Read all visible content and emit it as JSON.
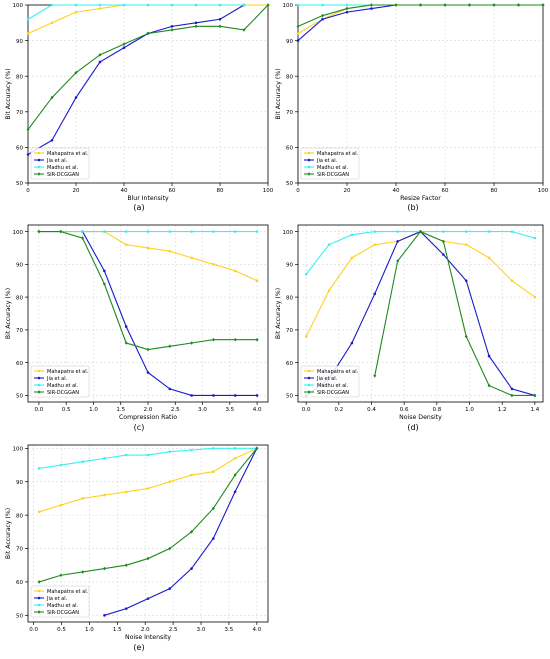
{
  "colors": {
    "Mahapatra et al.": "#ffd21f",
    "Jia et al.": "#1a1acc",
    "Madhu et al.": "#3af0f0",
    "SIR-DCGGAN": "#1e8a1e"
  },
  "chart_data": [
    {
      "panel_label": "(a)",
      "type": "line",
      "xlabel": "Blur Intensity",
      "ylabel": "Bit Accuracy (%)",
      "xlim": [
        0,
        100
      ],
      "ylim": [
        50,
        100
      ],
      "xticks": [
        "0",
        "20",
        "40",
        "60",
        "80",
        "100"
      ],
      "yticks": [
        "50",
        "60",
        "70",
        "80",
        "90",
        "100"
      ],
      "grid": true,
      "legend": "lower left",
      "series": [
        {
          "name": "Mahapatra et al.",
          "x": [
            0,
            10,
            20,
            30,
            40,
            50,
            60,
            70,
            80,
            90,
            100
          ],
          "values": [
            92,
            95,
            98,
            99,
            100,
            100,
            100,
            100,
            100,
            100,
            100
          ]
        },
        {
          "name": "Jia et al.",
          "x": [
            0,
            10,
            20,
            30,
            40,
            50,
            60,
            70,
            80,
            90
          ],
          "values": [
            58,
            62,
            74,
            84,
            88,
            92,
            94,
            95,
            96,
            100
          ]
        },
        {
          "name": "Madhu et al.",
          "x": [
            0,
            10,
            20,
            30,
            40,
            50,
            60,
            70,
            80,
            90
          ],
          "values": [
            96,
            100,
            100,
            100,
            100,
            100,
            100,
            100,
            100,
            100
          ]
        },
        {
          "name": "SIR-DCGGAN",
          "x": [
            0,
            10,
            20,
            30,
            40,
            50,
            60,
            70,
            80,
            90,
            100
          ],
          "values": [
            65,
            74,
            81,
            86,
            89,
            92,
            93,
            94,
            94,
            93,
            100
          ]
        }
      ]
    },
    {
      "panel_label": "(b)",
      "type": "line",
      "xlabel": "Resize Factor",
      "ylabel": "Bit Accuracy (%)",
      "xlim": [
        0,
        100
      ],
      "ylim": [
        50,
        100
      ],
      "xticks": [
        "0",
        "20",
        "40",
        "60",
        "80",
        "100"
      ],
      "yticks": [
        "50",
        "60",
        "70",
        "80",
        "90",
        "100"
      ],
      "grid": true,
      "legend": "lower left",
      "series": [
        {
          "name": "Mahapatra et al.",
          "x": [
            0,
            10,
            20,
            30,
            40,
            50,
            60,
            70,
            80,
            90,
            100
          ],
          "values": [
            92,
            96,
            99,
            100,
            100,
            100,
            100,
            100,
            100,
            100,
            100
          ]
        },
        {
          "name": "Jia et al.",
          "x": [
            0,
            10,
            20,
            30,
            40,
            50,
            60,
            70,
            80,
            90,
            100
          ],
          "values": [
            90,
            96,
            98,
            99,
            100,
            100,
            100,
            100,
            100,
            100,
            100
          ]
        },
        {
          "name": "Madhu et al.",
          "x": [
            0,
            10,
            20,
            30,
            40,
            50,
            60,
            70,
            80,
            90,
            100
          ],
          "values": [
            100,
            100,
            100,
            100,
            100,
            100,
            100,
            100,
            100,
            100,
            100
          ]
        },
        {
          "name": "SIR-DCGGAN",
          "x": [
            0,
            10,
            20,
            30,
            40,
            50,
            60,
            70,
            80,
            90,
            100
          ],
          "values": [
            94,
            97,
            99,
            100,
            100,
            100,
            100,
            100,
            100,
            100,
            100
          ]
        }
      ]
    },
    {
      "panel_label": "(c)",
      "type": "line",
      "xlabel": "Compression Ratio",
      "ylabel": "Bit Accuracy (%)",
      "xlim": [
        -0.2,
        4.2
      ],
      "ylim": [
        48,
        102
      ],
      "xticks": [
        "0.0",
        "0.5",
        "1.0",
        "1.5",
        "2.0",
        "2.5",
        "3.0",
        "3.5",
        "4.0"
      ],
      "yticks": [
        "50",
        "60",
        "70",
        "80",
        "90",
        "100"
      ],
      "grid": true,
      "legend": "lower left",
      "series": [
        {
          "name": "Mahapatra et al.",
          "x": [
            0.0,
            0.4,
            0.8,
            1.2,
            1.6,
            2.0,
            2.4,
            2.8,
            3.2,
            3.6,
            4.0
          ],
          "values": [
            100,
            100,
            100,
            100,
            96,
            95,
            94,
            92,
            90,
            88,
            85
          ]
        },
        {
          "name": "Jia et al.",
          "x": [
            0.8,
            1.2,
            1.6,
            2.0,
            2.4,
            2.8,
            3.2,
            3.6,
            4.0
          ],
          "values": [
            100,
            88,
            71,
            57,
            52,
            50,
            50,
            50,
            50
          ]
        },
        {
          "name": "Madhu et al.",
          "x": [
            0.0,
            0.4,
            0.8,
            1.2,
            1.6,
            2.0,
            2.4,
            2.8,
            3.2,
            3.6,
            4.0
          ],
          "values": [
            100,
            100,
            100,
            100,
            100,
            100,
            100,
            100,
            100,
            100,
            100
          ]
        },
        {
          "name": "SIR-DCGGAN",
          "x": [
            0.0,
            0.4,
            0.8,
            1.2,
            1.6,
            2.0,
            2.4,
            2.8,
            3.2,
            3.6,
            4.0
          ],
          "values": [
            100,
            100,
            98,
            84,
            66,
            64,
            65,
            66,
            67,
            67,
            67
          ]
        }
      ]
    },
    {
      "panel_label": "(d)",
      "type": "line",
      "xlabel": "Noise Density",
      "ylabel": "Bit Accuracy (%)",
      "xlim": [
        -0.05,
        1.45
      ],
      "ylim": [
        48,
        102
      ],
      "xticks": [
        "0.0",
        "0.2",
        "0.4",
        "0.6",
        "0.8",
        "1.0",
        "1.2",
        "1.4"
      ],
      "yticks": [
        "50",
        "60",
        "70",
        "80",
        "90",
        "100"
      ],
      "grid": true,
      "legend": "lower left",
      "series": [
        {
          "name": "Mahapatra et al.",
          "x": [
            0.0,
            0.14,
            0.28,
            0.42,
            0.56,
            0.7,
            0.84,
            0.98,
            1.12,
            1.26,
            1.4
          ],
          "values": [
            68,
            82,
            92,
            96,
            97,
            100,
            97,
            96,
            92,
            85,
            80
          ]
        },
        {
          "name": "Jia et al.",
          "x": [
            0.0,
            0.14,
            0.28,
            0.42,
            0.56,
            0.7,
            0.84,
            0.98,
            1.12,
            1.26,
            1.4
          ],
          "values": [
            50,
            55,
            66,
            81,
            97,
            100,
            93,
            85,
            62,
            52,
            50
          ]
        },
        {
          "name": "Madhu et al.",
          "x": [
            0.0,
            0.14,
            0.28,
            0.42,
            0.56,
            0.7,
            0.84,
            0.98,
            1.12,
            1.26,
            1.4
          ],
          "values": [
            87,
            96,
            99,
            100,
            100,
            100,
            100,
            100,
            100,
            100,
            98
          ]
        },
        {
          "name": "SIR-DCGGAN",
          "x": [
            0.42,
            0.56,
            0.7,
            0.84,
            0.98,
            1.12,
            1.26,
            1.4
          ],
          "values": [
            56,
            91,
            100,
            97,
            68,
            53,
            50,
            50
          ]
        }
      ]
    },
    {
      "panel_label": "(e)",
      "type": "line",
      "xlabel": "Noise Intensity",
      "ylabel": "Bit Accuracy (%)",
      "xlim": [
        -0.1,
        4.2
      ],
      "ylim": [
        48,
        101
      ],
      "xticks": [
        "0.0",
        "0.5",
        "1.0",
        "1.5",
        "2.0",
        "2.5",
        "3.0",
        "3.5",
        "4.0"
      ],
      "yticks": [
        "50",
        "60",
        "70",
        "80",
        "90",
        "100"
      ],
      "grid": true,
      "legend": "lower left",
      "series": [
        {
          "name": "Mahapatra et al.",
          "x": [
            0.1,
            0.49,
            0.88,
            1.27,
            1.66,
            2.05,
            2.44,
            2.83,
            3.22,
            3.61,
            4.0
          ],
          "values": [
            81,
            83,
            85,
            86,
            87,
            88,
            90,
            92,
            93,
            97,
            100
          ]
        },
        {
          "name": "Jia et al.",
          "x": [
            1.27,
            1.66,
            2.05,
            2.44,
            2.83,
            3.22,
            3.61,
            4.0
          ],
          "values": [
            50,
            52,
            55,
            58,
            64,
            73,
            87,
            100
          ]
        },
        {
          "name": "Madhu et al.",
          "x": [
            0.1,
            0.49,
            0.88,
            1.27,
            1.66,
            2.05,
            2.44,
            2.83,
            3.22,
            3.61,
            4.0
          ],
          "values": [
            94,
            95,
            96,
            97,
            98,
            98,
            99,
            99.5,
            100,
            100,
            100
          ]
        },
        {
          "name": "SIR-DCGGAN",
          "x": [
            0.1,
            0.49,
            0.88,
            1.27,
            1.66,
            2.05,
            2.44,
            2.83,
            3.22,
            3.61,
            4.0
          ],
          "values": [
            60,
            62,
            63,
            64,
            65,
            67,
            70,
            75,
            82,
            92,
            100
          ]
        }
      ]
    }
  ]
}
